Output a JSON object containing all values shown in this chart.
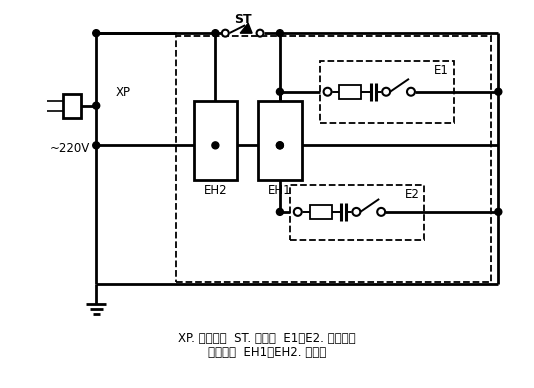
{
  "bg_color": "#ffffff",
  "caption_line1": "XP. 电源插头  ST. 调温器  E1，E2. 带指示灯",
  "caption_line2": "功率开关  EH1、EH2. 发热器",
  "label_ST": "ST",
  "label_XP": "XP",
  "label_220V": "~220V",
  "label_E1": "E1",
  "label_E2": "E2",
  "label_EH1": "EH1",
  "label_EH2": "EH2",
  "lw": 1.4,
  "lw2": 2.0
}
